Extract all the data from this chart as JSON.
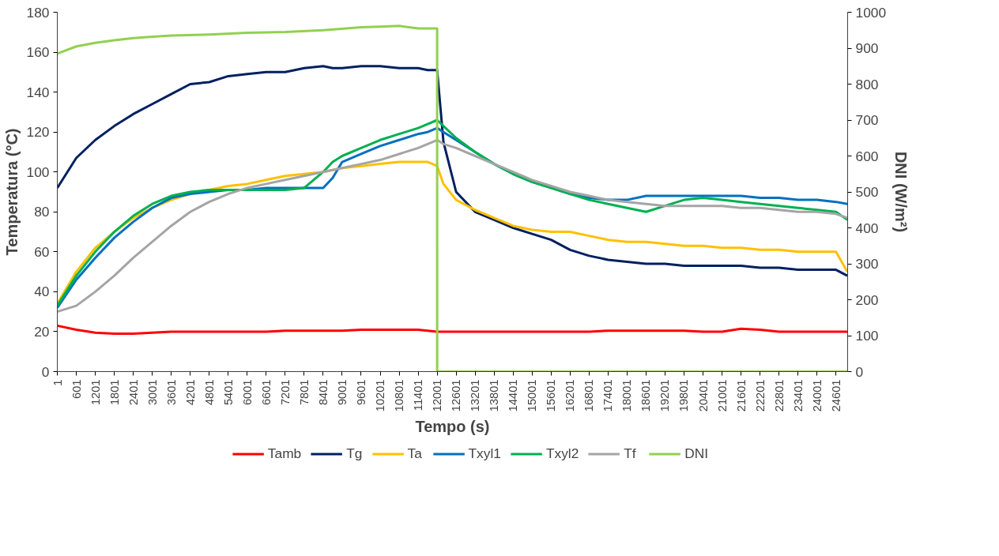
{
  "chart_data": {
    "type": "line",
    "xlabel": "Tempo (s)",
    "ylabel": "Temperatura (°C)",
    "y2label": "DNI (W/m²)",
    "x": [
      1,
      601,
      1201,
      1801,
      2401,
      3001,
      3601,
      4201,
      4801,
      5401,
      6001,
      6601,
      7201,
      7801,
      8401,
      8701,
      9001,
      9601,
      10201,
      10801,
      11401,
      11701,
      12001,
      12201,
      12601,
      13201,
      13801,
      14401,
      15001,
      15601,
      16201,
      16801,
      17401,
      18001,
      18601,
      19201,
      19801,
      20401,
      21001,
      21601,
      22201,
      22801,
      23401,
      24001,
      24601,
      24960
    ],
    "xlim": [
      1,
      24970
    ],
    "xticks": [
      1,
      601,
      1201,
      1801,
      2401,
      3001,
      3601,
      4201,
      4801,
      5401,
      6001,
      6601,
      7201,
      7801,
      8401,
      9001,
      9601,
      10201,
      10801,
      11401,
      12001,
      12601,
      13201,
      13801,
      14401,
      15001,
      15601,
      16201,
      16801,
      17401,
      18001,
      18601,
      19201,
      19801,
      20401,
      21001,
      21601,
      22201,
      22801,
      23401,
      24001,
      24601
    ],
    "ylim": [
      0,
      180
    ],
    "yticks": [
      0,
      20,
      40,
      60,
      80,
      100,
      120,
      140,
      160,
      180
    ],
    "y2lim": [
      0,
      1000
    ],
    "y2ticks": [
      0,
      100,
      200,
      300,
      400,
      500,
      600,
      700,
      800,
      900,
      1000
    ],
    "grid": false,
    "legend": "bottom",
    "line_style": "solid",
    "marker": "none",
    "series": [
      {
        "name": "Tamb",
        "color": "#ff0000",
        "values": [
          23,
          21,
          19.5,
          19,
          19,
          19.5,
          20,
          20,
          20,
          20,
          20,
          20,
          20.5,
          20.5,
          20.5,
          20.5,
          20.5,
          21,
          21,
          21,
          21,
          20.5,
          20,
          20,
          20,
          20,
          20,
          20,
          20,
          20,
          20,
          20,
          20.5,
          20.5,
          20.5,
          20.5,
          20.5,
          20,
          20,
          21.5,
          21,
          20,
          20,
          20,
          20,
          20
        ]
      },
      {
        "name": "Tg",
        "color": "#002060",
        "values": [
          92,
          107,
          116,
          123,
          129,
          134,
          139,
          144,
          145,
          148,
          149,
          150,
          150,
          152,
          153,
          152,
          152,
          153,
          153,
          152,
          152,
          151,
          151,
          115,
          90,
          80,
          76,
          72,
          69,
          66,
          61,
          58,
          56,
          55,
          54,
          54,
          53,
          53,
          53,
          53,
          52,
          52,
          51,
          51,
          51,
          48
        ]
      },
      {
        "name": "Ta",
        "color": "#ffc000",
        "values": [
          34,
          50,
          62,
          70,
          77,
          82,
          86,
          89,
          91,
          93,
          94,
          96,
          98,
          99,
          100,
          101,
          102,
          103,
          104,
          105,
          105,
          105,
          103,
          94,
          86,
          81,
          77,
          73,
          71,
          70,
          70,
          68,
          66,
          65,
          65,
          64,
          63,
          63,
          62,
          62,
          61,
          61,
          60,
          60,
          60,
          50
        ]
      },
      {
        "name": "Txyl1",
        "color": "#0070c0",
        "values": [
          32,
          46,
          57,
          67,
          75,
          82,
          87,
          89,
          90,
          91,
          91,
          92,
          92,
          92,
          92,
          97,
          105,
          109,
          113,
          116,
          119,
          120,
          122,
          120,
          116,
          110,
          104,
          99,
          95,
          92,
          89,
          87,
          86,
          86,
          88,
          88,
          88,
          88,
          88,
          88,
          87,
          87,
          86,
          86,
          85,
          84
        ]
      },
      {
        "name": "Txyl2",
        "color": "#00b050",
        "values": [
          33,
          48,
          60,
          70,
          78,
          84,
          88,
          90,
          91,
          91,
          91,
          91,
          91,
          92,
          100,
          105,
          108,
          112,
          116,
          119,
          122,
          124,
          126,
          123,
          117,
          110,
          104,
          99,
          95,
          92,
          89,
          86,
          84,
          82,
          80,
          83,
          86,
          87,
          86,
          85,
          84,
          83,
          82,
          81,
          80,
          76
        ]
      },
      {
        "name": "Tf",
        "color": "#a5a5a5",
        "values": [
          30,
          33,
          40,
          48,
          57,
          65,
          73,
          80,
          85,
          89,
          92,
          94,
          96,
          98,
          100,
          101,
          102,
          104,
          106,
          109,
          112,
          114,
          116,
          114,
          112,
          108,
          104,
          100,
          96,
          93,
          90,
          88,
          86,
          85,
          84,
          83,
          83,
          83,
          83,
          82,
          82,
          81,
          80,
          80,
          79,
          77
        ]
      },
      {
        "name": "DNI",
        "color": "#92d050",
        "axis": "y2",
        "x": [
          1,
          601,
          1201,
          1801,
          2401,
          3001,
          3601,
          4801,
          6001,
          7201,
          8401,
          9601,
          10201,
          10801,
          11401,
          12001,
          12002,
          24960
        ],
        "values": [
          885,
          905,
          915,
          922,
          928,
          932,
          935,
          938,
          943,
          945,
          950,
          958,
          960,
          962,
          955,
          955,
          0,
          0
        ]
      }
    ]
  }
}
